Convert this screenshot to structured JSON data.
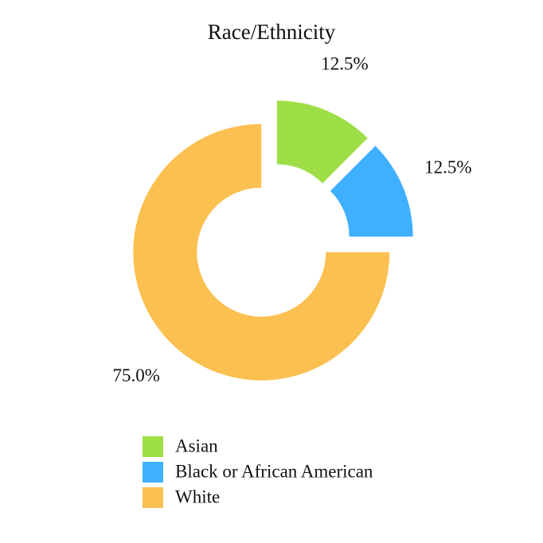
{
  "chart_data": {
    "type": "donut",
    "title": "Race/Ethnicity",
    "categories": [
      "Asian",
      "Black or African American",
      "White"
    ],
    "values": [
      12.5,
      12.5,
      75.0
    ],
    "value_labels": [
      "12.5%",
      "12.5%",
      "75.0%"
    ],
    "colors": [
      "#9ede47",
      "#3fb0ff",
      "#fbc050"
    ]
  }
}
